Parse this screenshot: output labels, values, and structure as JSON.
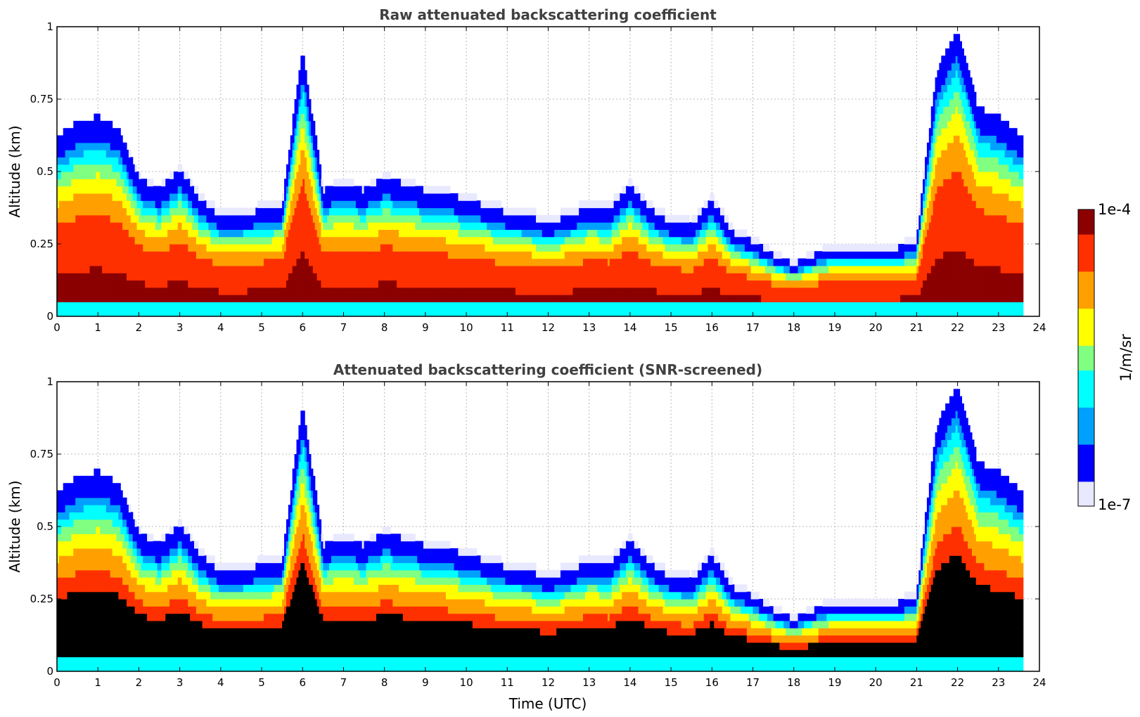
{
  "chart_data": [
    {
      "type": "heatmap",
      "title": "Raw attenuated backscattering coefficient",
      "xlabel": "",
      "ylabel": "Altitude (km)",
      "xlim": [
        0,
        24
      ],
      "ylim": [
        0,
        1
      ],
      "x_ticks": [
        "0",
        "1",
        "2",
        "3",
        "4",
        "5",
        "6",
        "7",
        "8",
        "9",
        "10",
        "11",
        "12",
        "13",
        "14",
        "15",
        "16",
        "17",
        "18",
        "19",
        "20",
        "21",
        "22",
        "23",
        "24"
      ],
      "y_ticks": [
        "0",
        "0.25",
        "0.5",
        "0.75",
        "1"
      ],
      "grid": true,
      "screened": false,
      "data_end_hour": 23.6,
      "layer_top_km": {
        "hours": [
          0,
          0.5,
          1,
          1.5,
          2,
          2.5,
          3,
          3.5,
          4,
          4.5,
          5,
          5.5,
          6,
          6.5,
          7,
          7.5,
          8,
          8.5,
          9,
          9.5,
          10,
          10.5,
          11,
          11.5,
          12,
          12.5,
          13,
          13.5,
          14,
          14.5,
          15,
          15.5,
          16,
          16.5,
          17,
          17.5,
          18,
          18.5,
          19,
          19.5,
          20,
          20.5,
          21,
          21.5,
          22,
          22.5,
          23,
          23.6
        ],
        "values": [
          0.55,
          0.6,
          0.62,
          0.58,
          0.42,
          0.38,
          0.45,
          0.35,
          0.3,
          0.3,
          0.32,
          0.33,
          0.85,
          0.38,
          0.4,
          0.38,
          0.42,
          0.4,
          0.38,
          0.37,
          0.35,
          0.33,
          0.31,
          0.3,
          0.28,
          0.3,
          0.33,
          0.32,
          0.4,
          0.32,
          0.28,
          0.27,
          0.35,
          0.25,
          0.22,
          0.18,
          0.15,
          0.18,
          0.2,
          0.2,
          0.2,
          0.2,
          0.22,
          0.78,
          0.92,
          0.65,
          0.62,
          0.55
        ]
      }
    },
    {
      "type": "heatmap",
      "title": "Attenuated backscattering coefficient (SNR-screened)",
      "xlabel": "Time (UTC)",
      "ylabel": "Altitude (km)",
      "xlim": [
        0,
        24
      ],
      "ylim": [
        0,
        1
      ],
      "x_ticks": [
        "0",
        "1",
        "2",
        "3",
        "4",
        "5",
        "6",
        "7",
        "8",
        "9",
        "10",
        "11",
        "12",
        "13",
        "14",
        "15",
        "16",
        "17",
        "18",
        "19",
        "20",
        "21",
        "22",
        "23",
        "24"
      ],
      "y_ticks": [
        "0",
        "0.25",
        "0.5",
        "0.75",
        "1"
      ],
      "grid": true,
      "screened": true,
      "data_end_hour": 23.6,
      "layer_top_km": {
        "hours": [
          0,
          0.5,
          1,
          1.5,
          2,
          2.5,
          3,
          3.5,
          4,
          4.5,
          5,
          5.5,
          6,
          6.5,
          7,
          7.5,
          8,
          8.5,
          9,
          9.5,
          10,
          10.5,
          11,
          11.5,
          12,
          12.5,
          13,
          13.5,
          14,
          14.5,
          15,
          15.5,
          16,
          16.5,
          17,
          17.5,
          18,
          18.5,
          19,
          19.5,
          20,
          20.5,
          21,
          21.5,
          22,
          22.5,
          23,
          23.6
        ],
        "values": [
          0.55,
          0.6,
          0.62,
          0.58,
          0.42,
          0.38,
          0.45,
          0.35,
          0.3,
          0.3,
          0.32,
          0.33,
          0.85,
          0.38,
          0.4,
          0.38,
          0.42,
          0.4,
          0.38,
          0.37,
          0.35,
          0.33,
          0.31,
          0.3,
          0.28,
          0.3,
          0.33,
          0.32,
          0.4,
          0.32,
          0.28,
          0.27,
          0.35,
          0.25,
          0.22,
          0.18,
          0.15,
          0.18,
          0.2,
          0.2,
          0.2,
          0.2,
          0.22,
          0.78,
          0.92,
          0.65,
          0.62,
          0.55
        ]
      }
    }
  ],
  "colorbar": {
    "label": "1/m/sr",
    "max_label": "1e-4",
    "min_label": "1e-7",
    "colormap": "jet",
    "colors": [
      "#e8e8ff",
      "#0000ff",
      "#00a0ff",
      "#00ffff",
      "#80ff80",
      "#ffff00",
      "#ffa000",
      "#ff3000",
      "#8b0000"
    ]
  }
}
